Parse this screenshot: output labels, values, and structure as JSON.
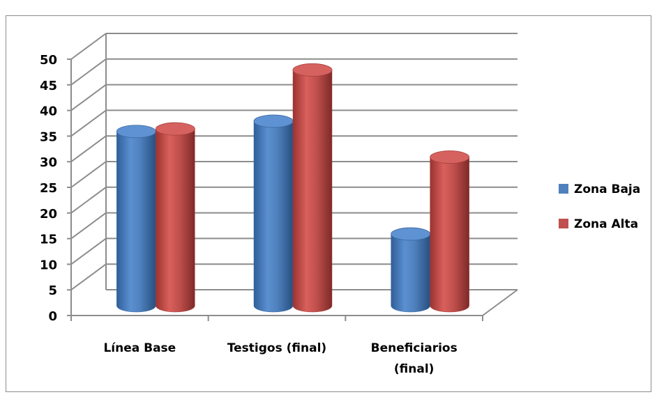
{
  "chart_data": {
    "type": "bar",
    "title": "",
    "categories": [
      [
        "Línea Base"
      ],
      [
        "Testigos (final)"
      ],
      [
        "Beneficiarios",
        "(final)"
      ]
    ],
    "series": [
      {
        "name": "Zona Baja",
        "color": "#4f81bd",
        "values": [
          34,
          36,
          14
        ]
      },
      {
        "name": "Zona Alta",
        "color": "#c0504d",
        "values": [
          34.5,
          46,
          29
        ]
      }
    ],
    "ylim": [
      0,
      50
    ],
    "yticks": [
      0,
      5,
      10,
      15,
      20,
      25,
      30,
      35,
      40,
      45,
      50
    ],
    "grid": true,
    "legend": "right",
    "xlabel": "",
    "ylabel": ""
  }
}
